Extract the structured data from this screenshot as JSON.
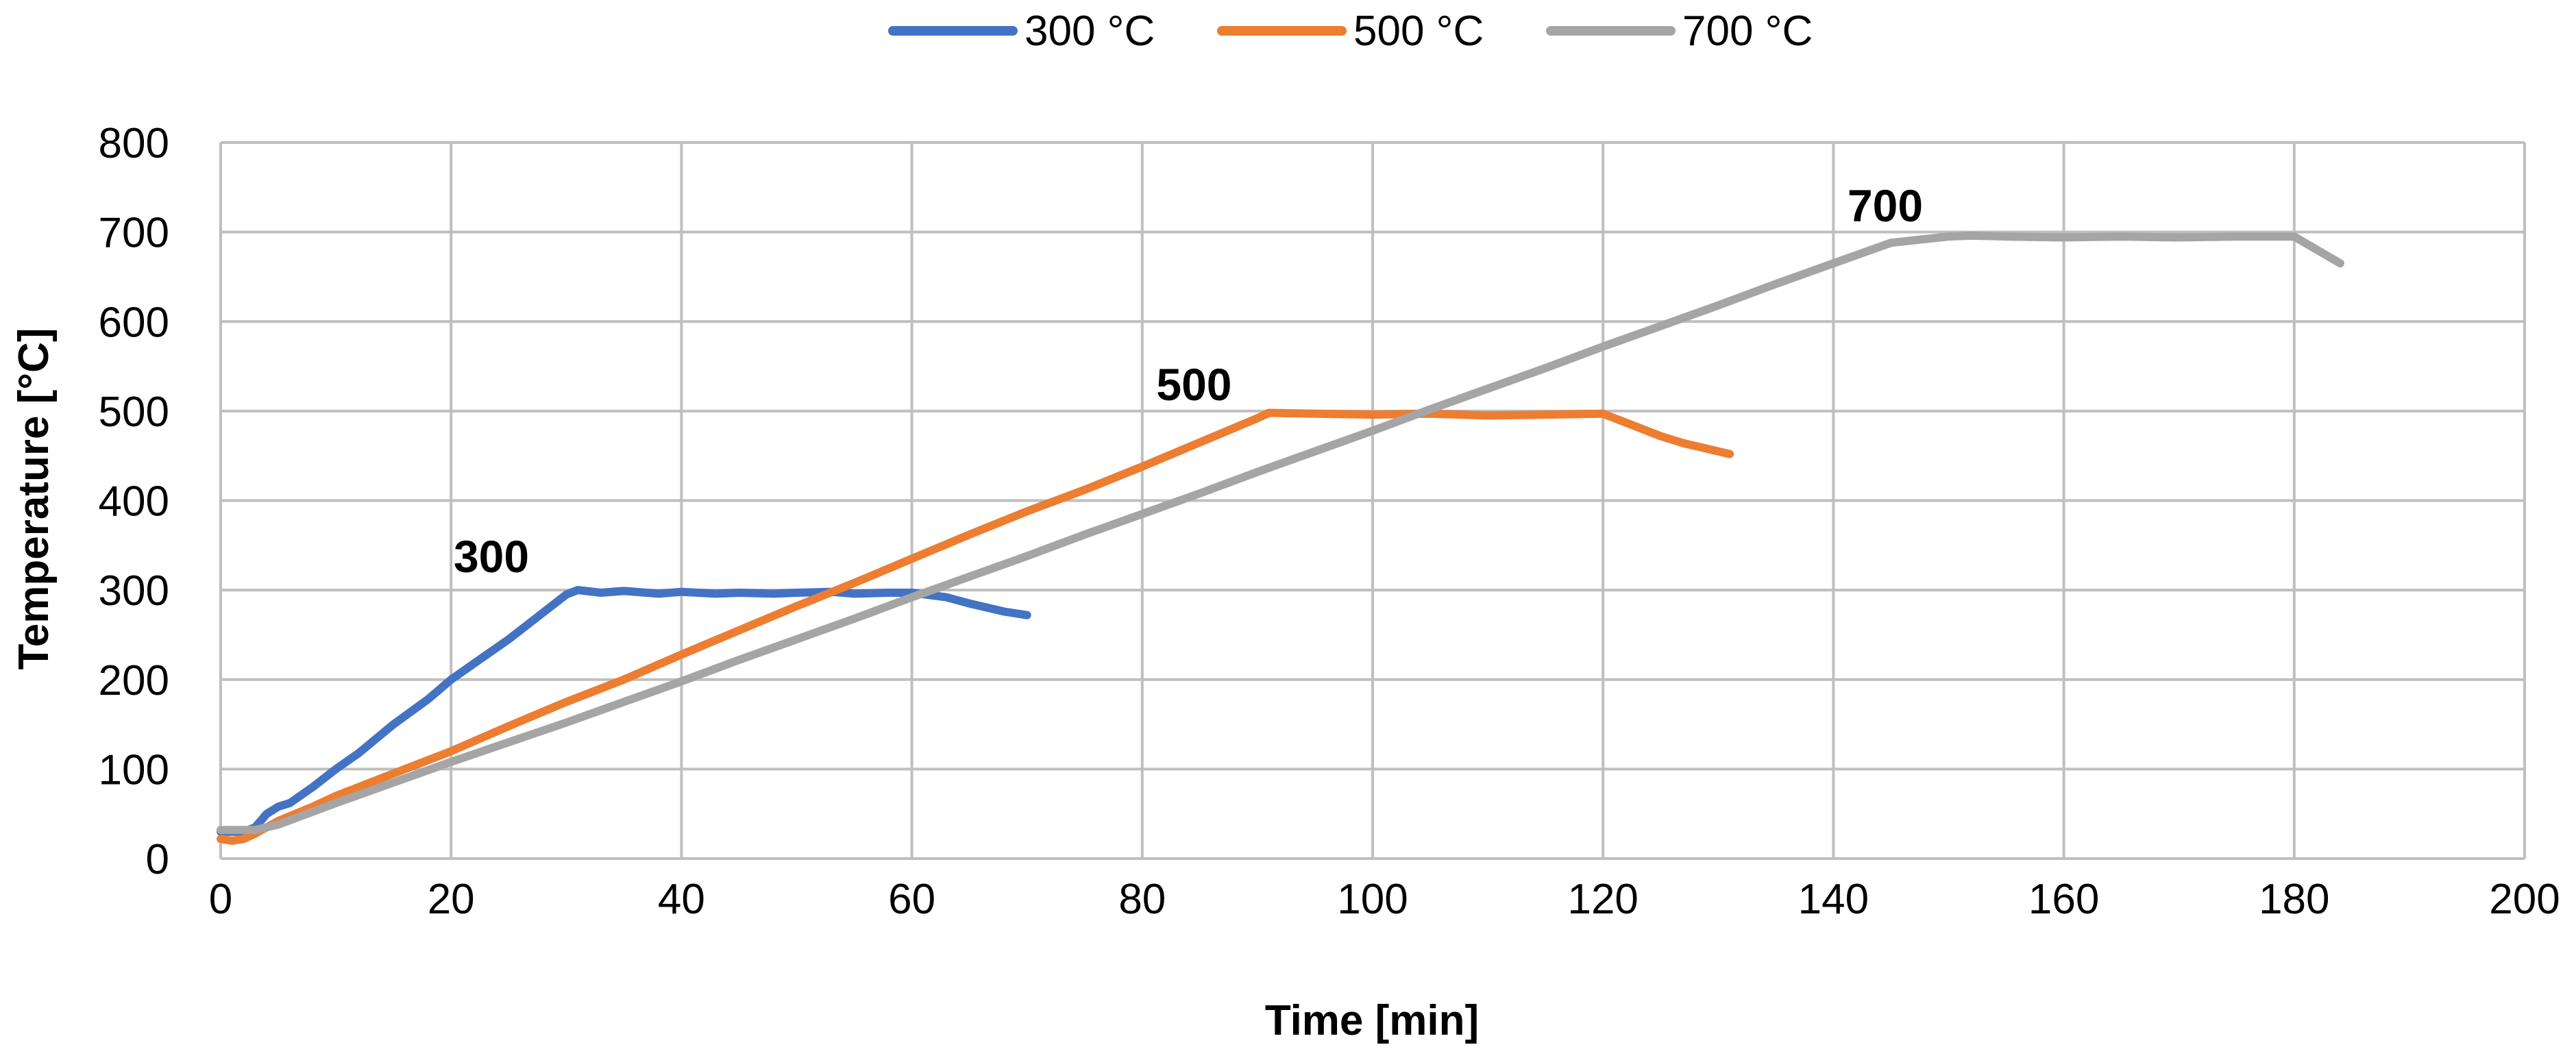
{
  "chart_data": {
    "type": "line",
    "title": "",
    "xlabel": "Time [min]",
    "ylabel": "Temperature [°C]",
    "xlim": [
      0,
      200
    ],
    "ylim": [
      0,
      800
    ],
    "xticks": [
      0,
      20,
      40,
      60,
      80,
      100,
      120,
      140,
      160,
      180,
      200
    ],
    "yticks": [
      0,
      100,
      200,
      300,
      400,
      500,
      600,
      700,
      800
    ],
    "grid": true,
    "legend_position": "top-center",
    "series": [
      {
        "name": "300 °C",
        "color": "#4472c4",
        "x": [
          0,
          2,
          3,
          4,
          5,
          6,
          8,
          10,
          12,
          15,
          18,
          20,
          22,
          25,
          28,
          30,
          31,
          33,
          35,
          38,
          40,
          43,
          45,
          48,
          50,
          53,
          55,
          58,
          60,
          63,
          65,
          68,
          70
        ],
        "y": [
          30,
          30,
          35,
          50,
          58,
          62,
          80,
          100,
          118,
          150,
          178,
          200,
          218,
          245,
          275,
          295,
          300,
          297,
          299,
          296,
          298,
          296,
          297,
          296,
          297,
          298,
          296,
          297,
          297,
          292,
          285,
          276,
          272
        ]
      },
      {
        "name": "500 °C",
        "color": "#ed7d31",
        "x": [
          0,
          1,
          2,
          3,
          5,
          8,
          10,
          15,
          20,
          25,
          30,
          35,
          40,
          45,
          50,
          55,
          60,
          65,
          70,
          75,
          80,
          85,
          90,
          91,
          95,
          100,
          105,
          110,
          115,
          120,
          121,
          123,
          125,
          127,
          129,
          131
        ],
        "y": [
          22,
          20,
          22,
          28,
          42,
          58,
          70,
          95,
          120,
          148,
          175,
          200,
          228,
          255,
          282,
          308,
          335,
          362,
          388,
          412,
          438,
          465,
          492,
          498,
          497,
          496,
          497,
          495,
          496,
          497,
          492,
          482,
          472,
          464,
          458,
          452
        ]
      },
      {
        "name": "700 °C",
        "color": "#a5a5a5",
        "x": [
          0,
          3,
          5,
          10,
          15,
          20,
          25,
          30,
          35,
          40,
          45,
          50,
          55,
          60,
          65,
          70,
          75,
          80,
          85,
          90,
          95,
          100,
          105,
          110,
          115,
          120,
          125,
          130,
          135,
          140,
          145,
          150,
          152,
          155,
          160,
          165,
          170,
          175,
          180,
          182,
          184
        ],
        "y": [
          32,
          32,
          38,
          62,
          85,
          108,
          130,
          152,
          175,
          198,
          222,
          245,
          268,
          292,
          315,
          338,
          362,
          385,
          408,
          432,
          455,
          478,
          502,
          525,
          548,
          572,
          595,
          618,
          642,
          665,
          688,
          695,
          696,
          695,
          694,
          695,
          694,
          695,
          695,
          680,
          665
        ]
      }
    ],
    "annotations": [
      {
        "text": "300",
        "x": 23.5,
        "y": 320
      },
      {
        "text": "500",
        "x": 84.5,
        "y": 512
      },
      {
        "text": "700",
        "x": 144.5,
        "y": 712
      }
    ]
  }
}
